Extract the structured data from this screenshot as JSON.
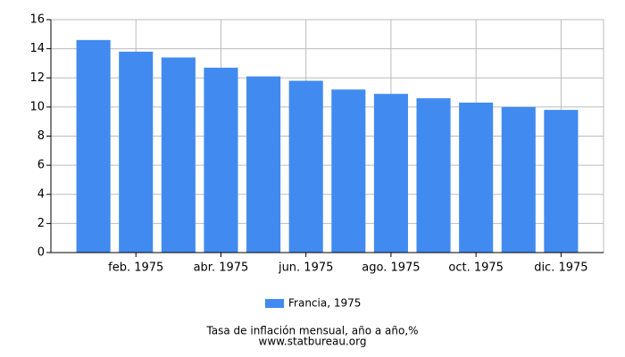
{
  "chart_data": {
    "type": "bar",
    "categories": [
      null,
      "feb. 1975",
      null,
      "abr. 1975",
      null,
      "jun. 1975",
      null,
      "ago. 1975",
      null,
      "oct. 1975",
      null,
      "dic. 1975"
    ],
    "series": [
      {
        "name": "Francia, 1975",
        "color": "#418af0",
        "values": [
          14.6,
          13.8,
          13.4,
          12.7,
          12.1,
          11.8,
          11.2,
          10.9,
          10.6,
          10.3,
          10.0,
          9.8
        ]
      }
    ],
    "ylim": [
      0,
      16
    ],
    "yticks": [
      0,
      2,
      4,
      6,
      8,
      10,
      12,
      14,
      16
    ],
    "grid": true,
    "legend": "bottom",
    "caption": "Tasa de inflación mensual, año a año,%",
    "source": "www.statbureau.org"
  }
}
